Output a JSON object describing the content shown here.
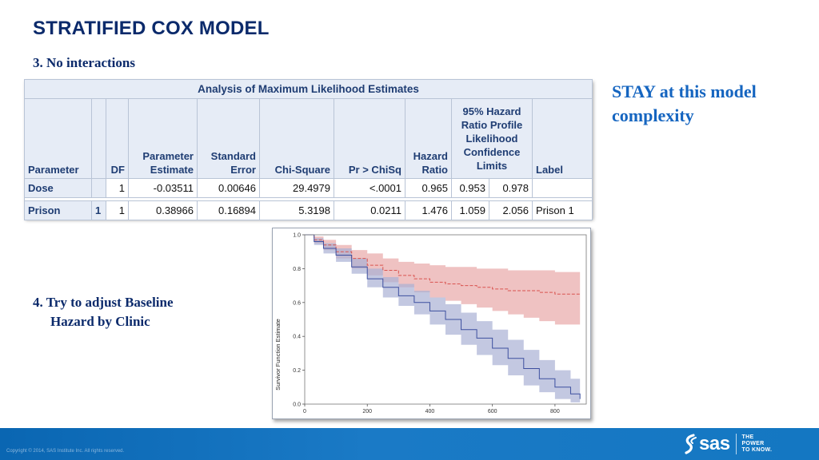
{
  "slide": {
    "title": "STRATIFIED COX MODEL",
    "subheading": "3. No interactions",
    "callout": "STAY at this model complexity",
    "step4_line1": "4. Try to adjust Baseline",
    "step4_line2": "Hazard by Clinic"
  },
  "table": {
    "caption": "Analysis of Maximum Likelihood Estimates",
    "headers": {
      "parameter": "Parameter",
      "level": "",
      "df": "DF",
      "estimate": "Parameter Estimate",
      "stderr": "Standard Error",
      "chisq": "Chi-Square",
      "p": "Pr > ChiSq",
      "hr": "Hazard Ratio",
      "ci": "95% Hazard Ratio Profile Likelihood Confidence Limits",
      "label": "Label"
    },
    "rows": [
      {
        "parameter": "Dose",
        "level": "",
        "df": "1",
        "estimate": "-0.03511",
        "stderr": "0.00646",
        "chisq": "29.4979",
        "p": "<.0001",
        "hr": "0.965",
        "lcl": "0.953",
        "ucl": "0.978",
        "label": ""
      },
      {
        "parameter": "Prison",
        "level": "1",
        "df": "1",
        "estimate": "0.38966",
        "stderr": "0.16894",
        "chisq": "5.3198",
        "p": "0.0211",
        "hr": "1.476",
        "lcl": "1.059",
        "ucl": "2.056",
        "label": "Prison 1"
      }
    ]
  },
  "chart_data": {
    "type": "line",
    "title": "",
    "xlabel": "",
    "ylabel": "Survivor Function Estimate",
    "xlim": [
      0,
      900
    ],
    "ylim": [
      0,
      1
    ],
    "xticks": [
      "0",
      "200",
      "400",
      "600",
      "800"
    ],
    "yticks": [
      "0.0",
      "0.2",
      "0.4",
      "0.6",
      "0.8",
      "1.0"
    ],
    "grid": false,
    "legend": "none",
    "series": [
      {
        "color": "#d9534f",
        "band_color": "#e8a8a8",
        "style": "dashed",
        "x": [
          0,
          30,
          60,
          100,
          150,
          200,
          250,
          300,
          350,
          400,
          450,
          500,
          550,
          600,
          650,
          700,
          750,
          800,
          880
        ],
        "y": [
          1.0,
          0.97,
          0.94,
          0.9,
          0.86,
          0.82,
          0.79,
          0.76,
          0.74,
          0.72,
          0.71,
          0.7,
          0.69,
          0.68,
          0.67,
          0.67,
          0.66,
          0.65,
          0.65
        ],
        "lower": [
          1.0,
          0.95,
          0.91,
          0.86,
          0.8,
          0.76,
          0.72,
          0.69,
          0.66,
          0.63,
          0.61,
          0.59,
          0.57,
          0.55,
          0.53,
          0.51,
          0.49,
          0.47,
          0.44
        ],
        "upper": [
          1.0,
          0.99,
          0.97,
          0.94,
          0.91,
          0.89,
          0.86,
          0.84,
          0.83,
          0.82,
          0.81,
          0.81,
          0.8,
          0.8,
          0.79,
          0.79,
          0.79,
          0.78,
          0.78
        ]
      },
      {
        "color": "#3d4f9f",
        "band_color": "#a9b1d4",
        "style": "solid",
        "x": [
          0,
          30,
          60,
          100,
          150,
          200,
          250,
          300,
          350,
          400,
          450,
          500,
          550,
          600,
          650,
          700,
          750,
          800,
          850,
          880
        ],
        "y": [
          1.0,
          0.96,
          0.92,
          0.88,
          0.81,
          0.74,
          0.69,
          0.64,
          0.6,
          0.55,
          0.5,
          0.44,
          0.39,
          0.33,
          0.27,
          0.21,
          0.15,
          0.1,
          0.06,
          0.03
        ],
        "lower": [
          1.0,
          0.94,
          0.89,
          0.84,
          0.77,
          0.69,
          0.63,
          0.58,
          0.53,
          0.47,
          0.41,
          0.35,
          0.29,
          0.23,
          0.17,
          0.11,
          0.07,
          0.03,
          0.01,
          0.01
        ],
        "upper": [
          1.0,
          0.98,
          0.95,
          0.92,
          0.86,
          0.8,
          0.75,
          0.71,
          0.67,
          0.63,
          0.59,
          0.54,
          0.49,
          0.44,
          0.38,
          0.32,
          0.26,
          0.2,
          0.15,
          0.12
        ]
      }
    ]
  },
  "footer": {
    "copyright": "Copyright © 2014, SAS Institute Inc. All rights reserved.",
    "logo_word": "sas",
    "tagline_1": "THE",
    "tagline_2": "POWER",
    "tagline_3": "TO KNOW."
  },
  "colors": {
    "title": "#0b2a6b",
    "callout": "#1565c0",
    "footer": "#1477c2"
  }
}
